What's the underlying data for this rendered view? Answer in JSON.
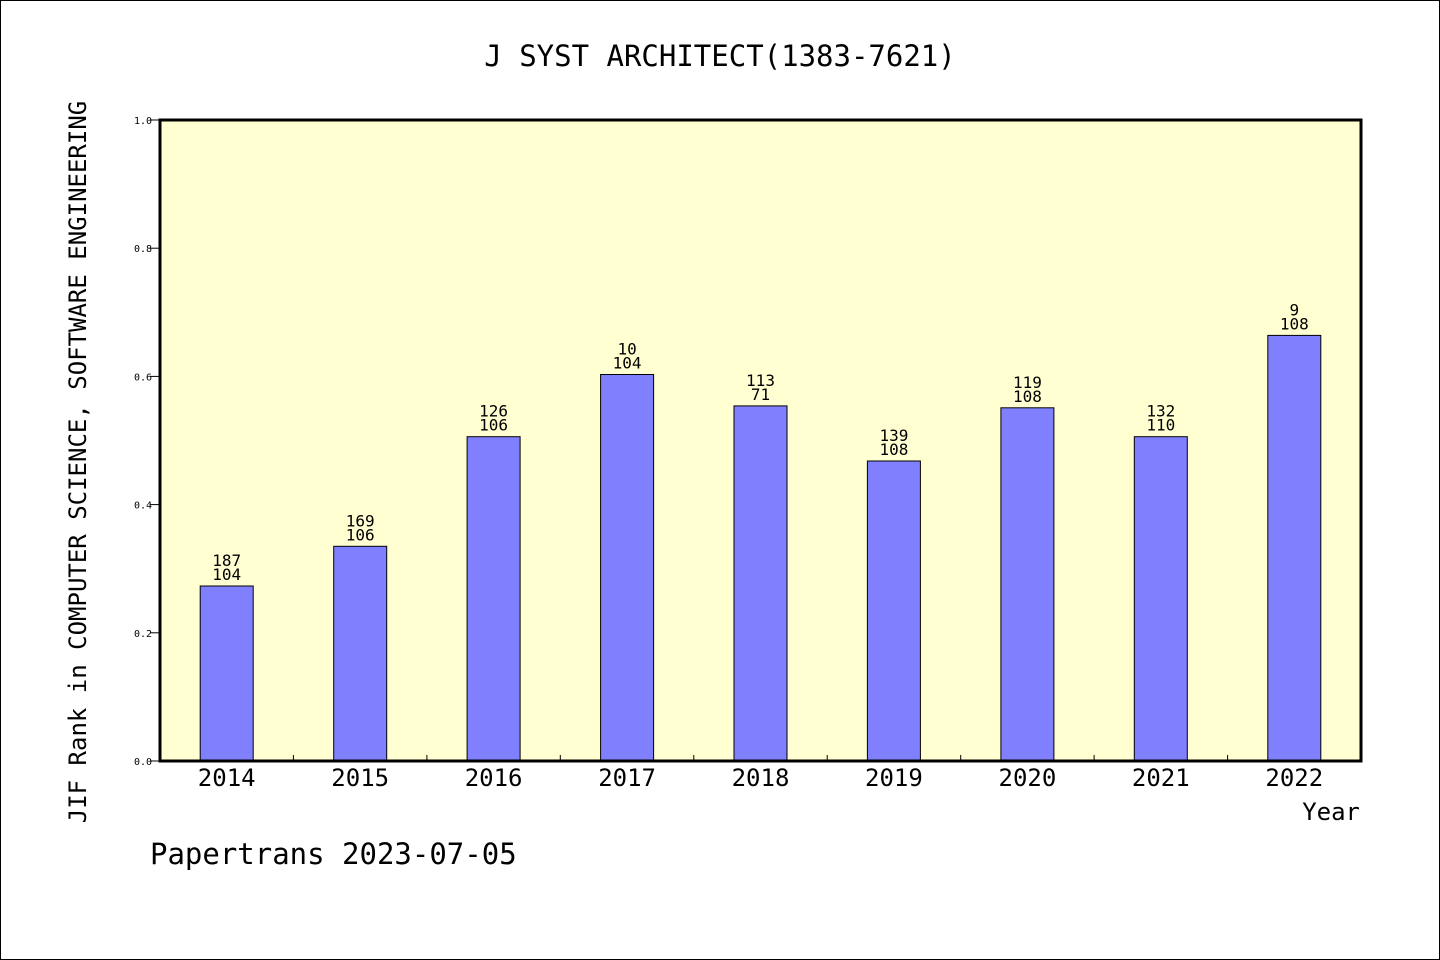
{
  "chart_data": {
    "type": "bar",
    "title": "J SYST ARCHITECT(1383-7621)",
    "xlabel": "Year",
    "ylabel": "JIF Rank in COMPUTER SCIENCE, SOFTWARE ENGINEERING",
    "ylim": [
      0,
      1.0
    ],
    "yticks": [
      "0.0",
      "0.2",
      "0.4",
      "0.6",
      "0.8",
      "1.0"
    ],
    "categories": [
      "2014",
      "2015",
      "2016",
      "2017",
      "2018",
      "2019",
      "2020",
      "2021",
      "2022"
    ],
    "values": [
      0.273,
      0.335,
      0.506,
      0.603,
      0.554,
      0.468,
      0.551,
      0.506,
      0.664
    ],
    "rank_labels": [
      "187",
      "169",
      "126",
      "10",
      "113",
      "139",
      "119",
      "132",
      "9"
    ],
    "total_labels": [
      "104",
      "106",
      "106",
      "104",
      "71",
      "108",
      "108",
      "110",
      "108"
    ],
    "grid": false,
    "colors": {
      "bar": "#8080ff",
      "plot_bg": "#ffffd2",
      "frame": "#000000"
    }
  },
  "footer": "Papertrans 2023-07-05"
}
